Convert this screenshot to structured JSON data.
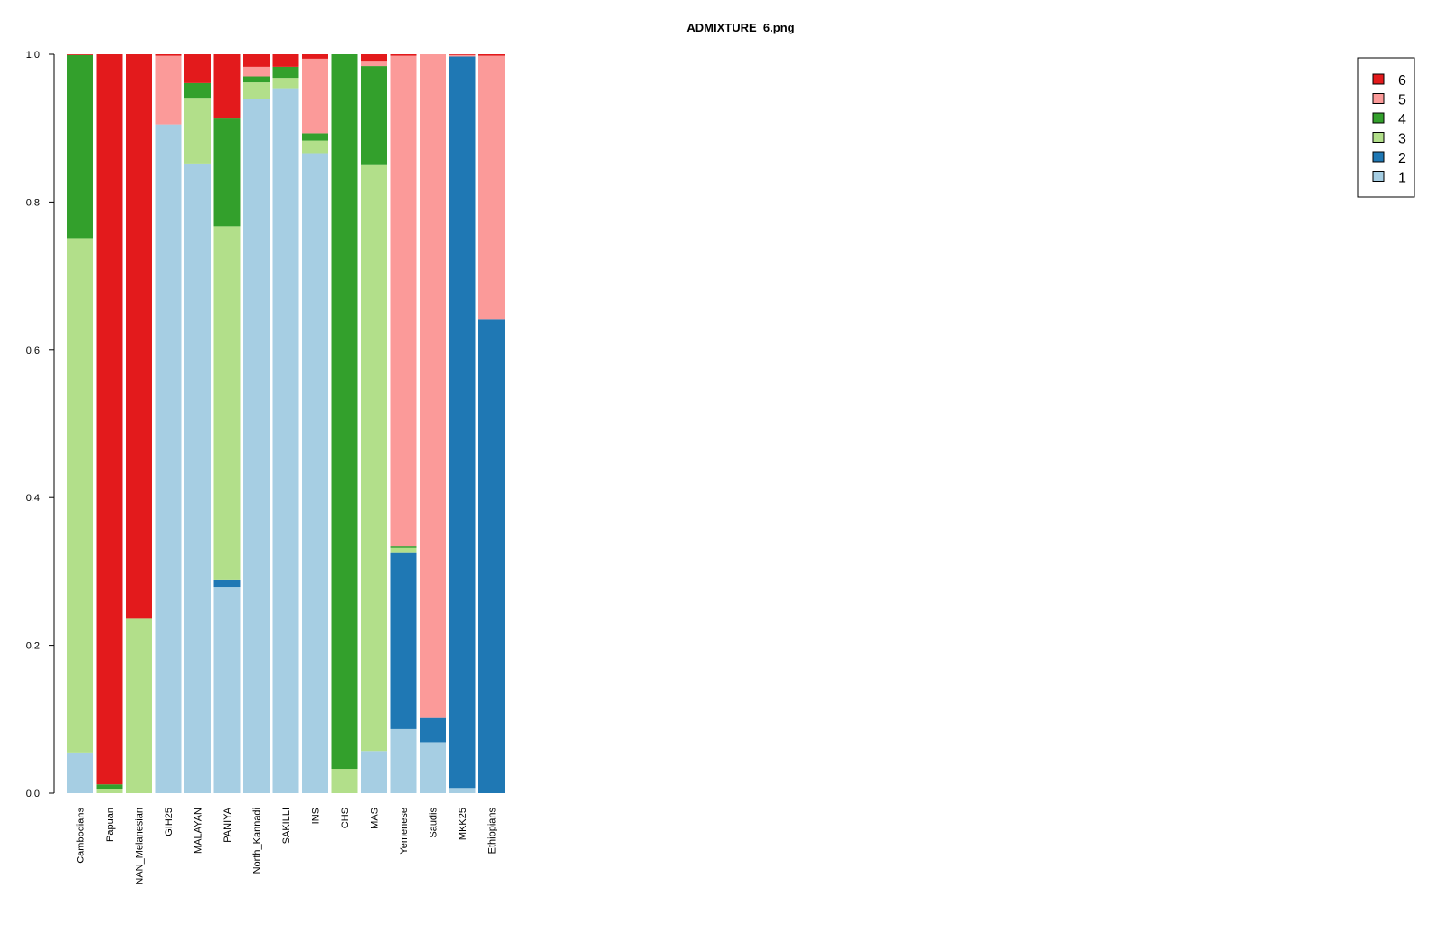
{
  "chart_data": {
    "type": "bar",
    "stacked": true,
    "title": "ADMIXTURE_6.png",
    "xlabel": "",
    "ylabel": "",
    "ylim": [
      0,
      1
    ],
    "yticks": [
      "0.0",
      "0.2",
      "0.4",
      "0.6",
      "0.8",
      "1.0"
    ],
    "categories": [
      "Cambodians",
      "Papuan",
      "NAN_Melanesian",
      "GIH25",
      "MALAYAN",
      "PANIYA",
      "North_Kannadi",
      "SAKILLI",
      "INS",
      "CHS",
      "MAS",
      "Yemenese",
      "Saudis",
      "MKK25",
      "Ethiopians"
    ],
    "series": [
      {
        "name": "1",
        "color": "#a6cee3",
        "values": [
          0.054,
          0.0,
          0.0,
          0.905,
          0.852,
          0.279,
          0.94,
          0.954,
          0.866,
          0.0,
          0.056,
          0.087,
          0.068,
          0.007,
          0.0
        ]
      },
      {
        "name": "2",
        "color": "#1f78b4",
        "values": [
          0.0,
          0.0,
          0.0,
          0.0,
          0.0,
          0.01,
          0.0,
          0.0,
          0.0,
          0.0,
          0.0,
          0.239,
          0.034,
          0.99,
          0.641
        ]
      },
      {
        "name": "3",
        "color": "#b2df8a",
        "values": [
          0.697,
          0.006,
          0.237,
          0.0,
          0.089,
          0.478,
          0.022,
          0.014,
          0.017,
          0.033,
          0.795,
          0.006,
          0.0,
          0.0,
          0.0
        ]
      },
      {
        "name": "4",
        "color": "#33a02c",
        "values": [
          0.248,
          0.006,
          0.0,
          0.0,
          0.02,
          0.146,
          0.008,
          0.015,
          0.01,
          0.967,
          0.133,
          0.002,
          0.0,
          0.0,
          0.0
        ]
      },
      {
        "name": "5",
        "color": "#fb9a99",
        "values": [
          0.0,
          0.0,
          0.0,
          0.093,
          0.0,
          0.0,
          0.013,
          0.0,
          0.101,
          0.0,
          0.006,
          0.664,
          0.898,
          0.002,
          0.357
        ]
      },
      {
        "name": "6",
        "color": "#e31a1c",
        "values": [
          0.001,
          0.988,
          0.763,
          0.002,
          0.039,
          0.087,
          0.017,
          0.017,
          0.006,
          0.0,
          0.01,
          0.002,
          0.0,
          0.001,
          0.002
        ]
      }
    ],
    "legend": {
      "placement": "top-right",
      "order": [
        "6",
        "5",
        "4",
        "3",
        "2",
        "1"
      ]
    }
  }
}
